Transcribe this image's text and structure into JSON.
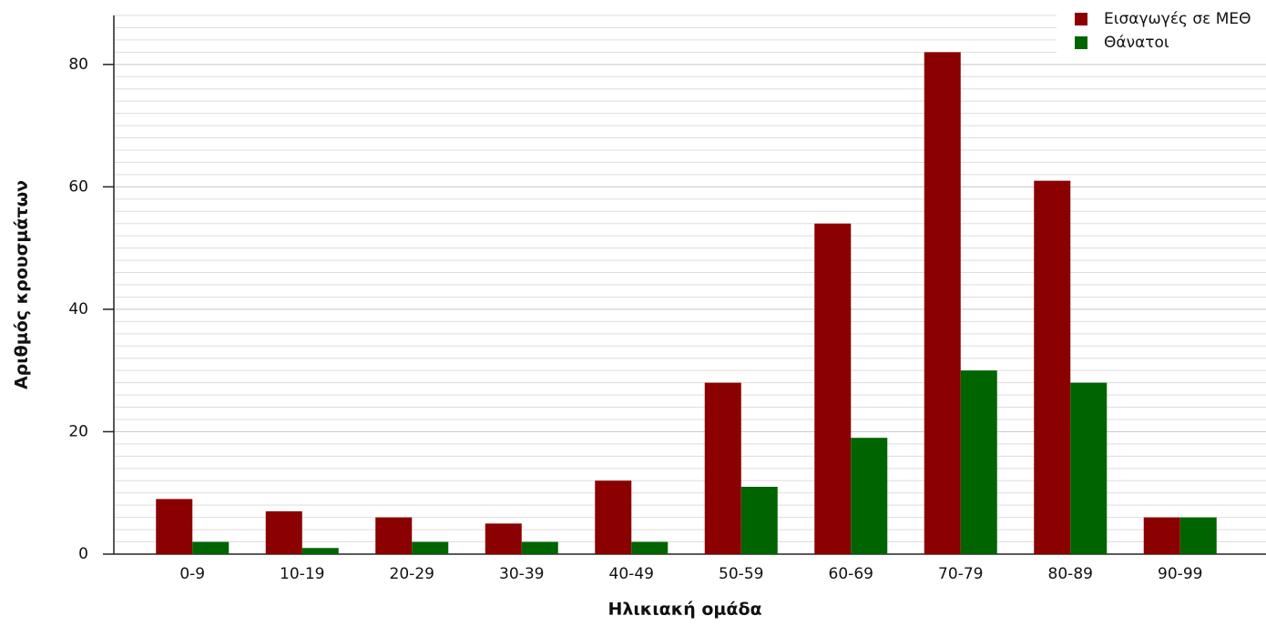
{
  "chart_data": {
    "type": "bar",
    "xlabel": "Ηλικιακή ομάδα",
    "ylabel": "Αριθμός κρουσμάτων",
    "categories": [
      "0-9",
      "10-19",
      "20-29",
      "30-39",
      "40-49",
      "50-59",
      "60-69",
      "70-79",
      "80-89",
      "90-99"
    ],
    "series": [
      {
        "name": "Εισαγωγές σε ΜΕΘ",
        "color": "#8b0000",
        "values": [
          9,
          7,
          6,
          5,
          12,
          28,
          54,
          82,
          61,
          6
        ]
      },
      {
        "name": "Θάνατοι",
        "color": "#006400",
        "values": [
          2,
          1,
          2,
          2,
          2,
          11,
          19,
          30,
          28,
          6
        ]
      }
    ],
    "ylim": [
      0,
      88
    ],
    "yticks": [
      0,
      20,
      40,
      60,
      80
    ],
    "grid": true,
    "minor_grid_step": 2,
    "legend": "upper right"
  }
}
